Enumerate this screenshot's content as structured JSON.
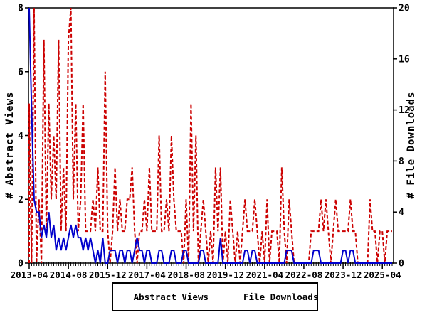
{
  "chart_data": {
    "type": "line",
    "title": "",
    "x_start": "2013-04",
    "x_interval": "monthly",
    "n_months": 149,
    "x_tick_labels": [
      "2013-04",
      "2014-08",
      "2015-12",
      "2017-04",
      "2018-08",
      "2019-12",
      "2021-04",
      "2022-08",
      "2023-12",
      "2025-04"
    ],
    "x_tick_month_indices": [
      0,
      16,
      32,
      48,
      64,
      80,
      96,
      112,
      128,
      144
    ],
    "y_left": {
      "label": "# Abstract Views",
      "min": 0,
      "max": 8,
      "ticks": [
        0,
        2,
        4,
        6,
        8
      ]
    },
    "y_right": {
      "label": "# File Downloads",
      "min": 0,
      "max": 20,
      "ticks": [
        0,
        4,
        8,
        12,
        16,
        20
      ]
    },
    "grid": false,
    "legend_position": "bottom-center",
    "colors": {
      "axis": "#000000",
      "background": "#ffffff",
      "abstract_views": "#cc0000",
      "file_downloads": "#0000cc"
    },
    "series": [
      {
        "name": "Abstract Views",
        "axis": "left",
        "color": "#cc0000",
        "style": "dashed",
        "values": [
          5,
          0,
          8,
          0,
          2,
          0,
          7,
          1,
          5,
          2,
          4,
          2,
          7,
          1,
          3,
          1,
          7,
          8,
          2,
          5,
          1,
          2,
          5,
          1,
          1,
          1,
          2,
          1,
          3,
          1,
          1,
          6,
          1,
          0,
          1,
          3,
          1,
          2,
          1,
          1,
          2,
          2,
          3,
          1,
          0,
          1,
          1,
          2,
          1,
          3,
          1,
          1,
          1,
          4,
          1,
          1,
          2,
          1,
          4,
          2,
          1,
          1,
          1,
          0,
          2,
          0,
          5,
          1,
          4,
          0,
          1,
          2,
          1,
          0,
          1,
          0,
          3,
          1,
          3,
          0,
          1,
          0,
          2,
          1,
          0,
          1,
          0,
          1,
          2,
          1,
          1,
          1,
          2,
          1,
          0,
          1,
          0,
          2,
          0,
          1,
          1,
          1,
          0,
          3,
          1,
          0,
          2,
          1,
          0,
          0,
          0,
          0,
          0,
          0,
          0,
          1,
          1,
          1,
          1,
          2,
          1,
          2,
          1,
          0,
          1,
          2,
          1,
          1,
          1,
          1,
          1,
          2,
          1,
          1,
          0,
          0,
          0,
          0,
          0,
          2,
          1,
          1,
          0,
          1,
          1,
          0,
          1,
          1,
          1
        ]
      },
      {
        "name": "File Downloads",
        "axis": "right",
        "color": "#0000cc",
        "style": "solid",
        "values": [
          20,
          12,
          5,
          4,
          4,
          2,
          3,
          2,
          4,
          2,
          3,
          1,
          2,
          1,
          2,
          1,
          2,
          3,
          2,
          3,
          2,
          2,
          1,
          2,
          1,
          2,
          1,
          0,
          1,
          0,
          2,
          0,
          0,
          1,
          1,
          1,
          0,
          1,
          1,
          0,
          1,
          1,
          0,
          1,
          2,
          1,
          1,
          0,
          1,
          1,
          0,
          0,
          0,
          1,
          1,
          0,
          0,
          0,
          1,
          1,
          0,
          0,
          0,
          1,
          1,
          0,
          0,
          0,
          0,
          0,
          1,
          1,
          0,
          0,
          0,
          0,
          0,
          0,
          2,
          0,
          0,
          0,
          0,
          0,
          0,
          0,
          0,
          0,
          1,
          1,
          0,
          1,
          1,
          0,
          0,
          0,
          0,
          0,
          0,
          0,
          0,
          0,
          0,
          0,
          0,
          1,
          1,
          1,
          0,
          0,
          0,
          0,
          0,
          0,
          0,
          0,
          1,
          1,
          1,
          0,
          0,
          0,
          0,
          0,
          0,
          0,
          0,
          0,
          1,
          1,
          0,
          1,
          1,
          0,
          0,
          0,
          0,
          0,
          0,
          0,
          0,
          0,
          0,
          0,
          0,
          0,
          0,
          0,
          0
        ]
      }
    ]
  }
}
